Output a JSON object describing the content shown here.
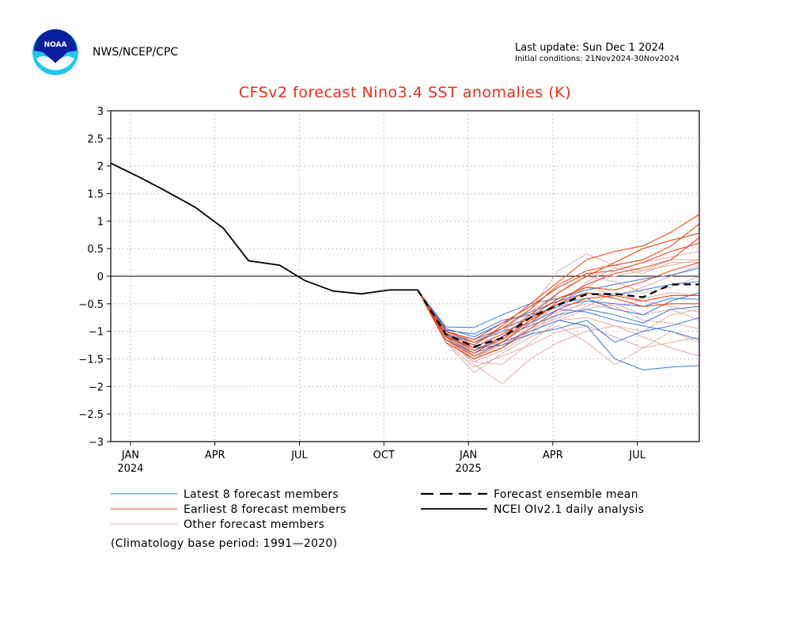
{
  "header": {
    "agency": "NWS/NCEP/CPC",
    "last_update": "Last update: Sun Dec 1 2024",
    "initial_conditions": "Initial conditions: 21Nov2024-30Nov2024",
    "logo_text": "NOAA"
  },
  "colors": {
    "title": "#e0311f",
    "latest_members": "#3a78d8",
    "earliest_members": "#e8481c",
    "other_members": "#e0b0a8",
    "observed": "#000000",
    "zero_line": "#000000"
  },
  "chart_data": {
    "type": "line",
    "title": "CFSv2 forecast Nino3.4 SST anomalies (K)",
    "xlabel": "",
    "ylabel": "",
    "ylim": [
      -3,
      3
    ],
    "yticks": [
      "3",
      "2.5",
      "2",
      "1.5",
      "1",
      "0.5",
      "0",
      "−0.5",
      "−1",
      "−1.5",
      "−2",
      "−2.5",
      "−3"
    ],
    "xticks": [
      {
        "label": "JAN",
        "sub": "2024",
        "month": 1
      },
      {
        "label": "APR",
        "sub": "",
        "month": 4
      },
      {
        "label": "JUL",
        "sub": "",
        "month": 7
      },
      {
        "label": "OCT",
        "sub": "",
        "month": 10
      },
      {
        "label": "JAN",
        "sub": "2025",
        "month": 13
      },
      {
        "label": "APR",
        "sub": "",
        "month": 16
      },
      {
        "label": "JUL",
        "sub": "",
        "month": 19
      }
    ],
    "xlim_months": [
      0.3,
      21.2
    ],
    "grid": true,
    "reference_line": 0,
    "observed": {
      "name": "NCEI OIv2.1 daily analysis",
      "x": [
        0.3,
        1.3,
        2.2,
        3.3,
        4.3,
        5.2,
        6.3,
        7.2,
        8.2,
        9.2,
        10.2,
        11.2
      ],
      "y": [
        2.05,
        1.8,
        1.56,
        1.25,
        0.87,
        0.28,
        0.2,
        -0.08,
        -0.27,
        -0.32,
        -0.25,
        -0.25
      ]
    },
    "forecast_x": [
      11.2,
      12.2,
      13.2,
      14.2,
      15.2,
      16.2,
      17.2,
      18.2,
      19.2,
      20.2,
      21.2
    ],
    "ensemble_mean": {
      "name": "Forecast ensemble mean",
      "y": [
        -0.25,
        -1.05,
        -1.28,
        -1.12,
        -0.75,
        -0.52,
        -0.33,
        -0.32,
        -0.38,
        -0.15,
        -0.15
      ]
    },
    "latest_members": {
      "name": "Latest 8 forecast members",
      "series": [
        [
          -0.25,
          -0.92,
          -0.93,
          -0.7,
          -0.5,
          -0.4,
          -0.25,
          -0.15,
          -0.05,
          0.02,
          0.15
        ],
        [
          -0.25,
          -0.98,
          -1.05,
          -0.8,
          -0.7,
          -0.55,
          -0.45,
          -0.5,
          -0.55,
          -0.4,
          -0.42
        ],
        [
          -0.25,
          -1.05,
          -1.2,
          -1.0,
          -0.85,
          -0.6,
          -0.65,
          -0.8,
          -0.9,
          -1.0,
          -1.15
        ],
        [
          -0.25,
          -1.1,
          -1.3,
          -1.25,
          -1.05,
          -0.95,
          -0.8,
          -1.2,
          -1.0,
          -0.9,
          -0.75
        ],
        [
          -0.25,
          -1.15,
          -1.4,
          -1.2,
          -1.0,
          -0.8,
          -0.9,
          -1.5,
          -1.7,
          -1.65,
          -1.62
        ],
        [
          -0.25,
          -1.0,
          -1.15,
          -0.95,
          -0.75,
          -0.5,
          -0.4,
          -0.6,
          -0.7,
          -0.45,
          -0.3
        ],
        [
          -0.25,
          -1.08,
          -1.35,
          -1.1,
          -0.9,
          -0.7,
          -0.6,
          -0.7,
          -0.85,
          -0.6,
          -0.55
        ],
        [
          -0.25,
          -0.95,
          -1.1,
          -0.85,
          -0.65,
          -0.45,
          -0.3,
          -0.35,
          -0.25,
          -0.15,
          -0.1
        ]
      ]
    },
    "earliest_members": {
      "name": "Earliest 8 forecast members",
      "series": [
        [
          -0.25,
          -1.05,
          -1.25,
          -0.9,
          -0.5,
          -0.1,
          0.3,
          0.45,
          0.55,
          0.8,
          1.12
        ],
        [
          -0.25,
          -1.1,
          -1.4,
          -1.1,
          -0.7,
          -0.3,
          0.0,
          0.25,
          0.5,
          0.65,
          0.78
        ],
        [
          -0.25,
          -1.0,
          -1.2,
          -0.95,
          -0.6,
          -0.15,
          0.1,
          0.2,
          0.3,
          0.55,
          0.95
        ],
        [
          -0.25,
          -1.15,
          -1.45,
          -1.2,
          -0.85,
          -0.45,
          -0.15,
          0.05,
          0.15,
          0.3,
          0.7
        ],
        [
          -0.25,
          -1.2,
          -1.5,
          -1.3,
          -0.95,
          -0.6,
          -0.4,
          -0.35,
          -0.45,
          -0.35,
          -0.35
        ],
        [
          -0.25,
          -1.1,
          -1.3,
          -1.05,
          -0.75,
          -0.4,
          -0.2,
          -0.25,
          -0.1,
          0.1,
          0.25
        ],
        [
          -0.25,
          -1.05,
          -1.35,
          -1.15,
          -0.8,
          -0.5,
          -0.3,
          -0.4,
          -0.55,
          -0.5,
          -0.5
        ],
        [
          -0.25,
          -1.0,
          -1.15,
          -0.85,
          -0.55,
          -0.2,
          0.05,
          0.1,
          0.25,
          0.45,
          0.6
        ]
      ]
    },
    "other_members": {
      "name": "Other forecast members",
      "series": [
        [
          -0.25,
          -1.1,
          -1.6,
          -1.95,
          -1.5,
          -1.2,
          -1.0,
          -0.9,
          -1.1,
          -1.3,
          -1.45
        ],
        [
          -0.25,
          -1.2,
          -1.75,
          -1.4,
          -1.1,
          -0.9,
          -1.2,
          -1.6,
          -1.3,
          -1.2,
          -1.1
        ],
        [
          -0.25,
          -1.0,
          -1.45,
          -1.3,
          -0.9,
          -0.5,
          -0.2,
          0.1,
          0.25,
          0.35,
          0.45
        ],
        [
          -0.25,
          -1.05,
          -1.3,
          -1.0,
          -0.6,
          0.1,
          0.4,
          0.2,
          0.1,
          0.3,
          0.3
        ],
        [
          -0.25,
          -1.15,
          -1.5,
          -1.2,
          -0.8,
          -0.3,
          0.0,
          -0.1,
          -0.3,
          -0.2,
          0.0
        ],
        [
          -0.25,
          -1.1,
          -1.55,
          -1.6,
          -1.2,
          -0.8,
          -0.6,
          -0.5,
          -0.7,
          -0.6,
          -0.8
        ],
        [
          -0.25,
          -0.95,
          -1.2,
          -1.0,
          -0.7,
          -0.4,
          -0.2,
          -0.35,
          -0.2,
          0.0,
          0.2
        ],
        [
          -0.25,
          -1.0,
          -1.3,
          -1.2,
          -1.0,
          -0.8,
          -0.75,
          -0.9,
          -1.0,
          -0.7,
          -0.6
        ],
        [
          -0.25,
          -1.2,
          -1.65,
          -1.45,
          -1.25,
          -1.0,
          -0.9,
          -1.1,
          -1.3,
          -1.0,
          -1.2
        ],
        [
          -0.25,
          -1.05,
          -1.4,
          -1.1,
          -0.8,
          -0.55,
          -0.1,
          0.15,
          0.05,
          0.25,
          0.25
        ],
        [
          -0.25,
          -1.1,
          -1.5,
          -1.3,
          -1.0,
          -0.65,
          -0.5,
          -0.6,
          -0.4,
          -0.3,
          -0.35
        ],
        [
          -0.25,
          -0.98,
          -1.25,
          -0.95,
          -0.65,
          -0.3,
          0.05,
          0.0,
          0.1,
          0.2,
          0.3
        ],
        [
          -0.25,
          -1.08,
          -1.45,
          -1.25,
          -0.95,
          -0.75,
          -0.55,
          -0.3,
          -0.45,
          -0.55,
          -0.65
        ],
        [
          -0.25,
          -1.15,
          -1.55,
          -1.35,
          -1.05,
          -0.7,
          -0.45,
          -0.55,
          -0.8,
          -0.85,
          -0.95
        ]
      ]
    },
    "legend": {
      "placement": "below",
      "climatology_note": "(Climatology base period: 1991—2020)"
    }
  }
}
